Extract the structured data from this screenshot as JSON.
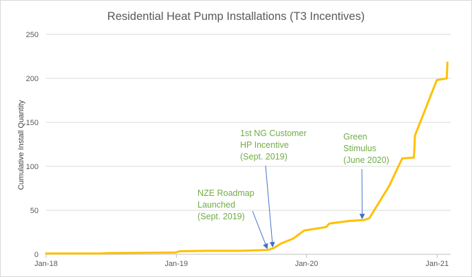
{
  "chart_data": {
    "type": "line",
    "title": "Residential Heat Pump Installations (T3 Incentives)",
    "xlabel": "",
    "ylabel": "Cumulative Install Quantity",
    "ylim": [
      0,
      250
    ],
    "yticks": [
      0,
      50,
      100,
      150,
      200,
      250
    ],
    "xlim": [
      "2018-01-01",
      "2021-02-08"
    ],
    "xticks": [
      {
        "label": "Jan-18",
        "date": "2018-01-01"
      },
      {
        "label": "Jan-19",
        "date": "2019-01-01"
      },
      {
        "label": "Jan-20",
        "date": "2020-01-01"
      },
      {
        "label": "Jan-21",
        "date": "2021-01-01"
      }
    ],
    "grid": "horizontal",
    "legend": "none",
    "colors": {
      "line": "#ffc000",
      "annotation": "#70ad47",
      "arrow": "#4472c4",
      "grid": "#d9d9d9"
    },
    "series": [
      {
        "points": [
          {
            "x": "2018-01-01",
            "y": 1
          },
          {
            "x": "2018-06-01",
            "y": 1
          },
          {
            "x": "2018-07-01",
            "y": 1.5
          },
          {
            "x": "2018-12-31",
            "y": 2
          },
          {
            "x": "2019-01-10",
            "y": 3.5
          },
          {
            "x": "2019-04-01",
            "y": 4
          },
          {
            "x": "2019-07-01",
            "y": 4
          },
          {
            "x": "2019-09-15",
            "y": 5
          },
          {
            "x": "2019-10-01",
            "y": 7
          },
          {
            "x": "2019-10-20",
            "y": 12
          },
          {
            "x": "2019-11-25",
            "y": 18
          },
          {
            "x": "2019-12-25",
            "y": 27
          },
          {
            "x": "2020-02-25",
            "y": 31
          },
          {
            "x": "2020-03-05",
            "y": 35
          },
          {
            "x": "2020-05-01",
            "y": 38
          },
          {
            "x": "2020-06-10",
            "y": 39
          },
          {
            "x": "2020-06-25",
            "y": 41
          },
          {
            "x": "2020-08-20",
            "y": 78
          },
          {
            "x": "2020-09-25",
            "y": 109
          },
          {
            "x": "2020-10-28",
            "y": 110
          },
          {
            "x": "2020-10-31",
            "y": 135
          },
          {
            "x": "2020-12-31",
            "y": 198
          },
          {
            "x": "2021-01-28",
            "y": 200
          },
          {
            "x": "2021-01-30",
            "y": 218
          }
        ]
      }
    ],
    "annotations": [
      {
        "lines": [
          "NZE Roadmap",
          "Launched",
          "(Sept. 2019)"
        ],
        "x": "2019-09-12",
        "y": 5
      },
      {
        "lines": [
          "1st NG Customer",
          "HP Incentive",
          "(Sept. 2019)"
        ],
        "x": "2019-09-28",
        "y": 7
      },
      {
        "lines": [
          "Green",
          "Stimulus",
          "(June 2020)"
        ],
        "x": "2020-06-05",
        "y": 39
      }
    ]
  }
}
